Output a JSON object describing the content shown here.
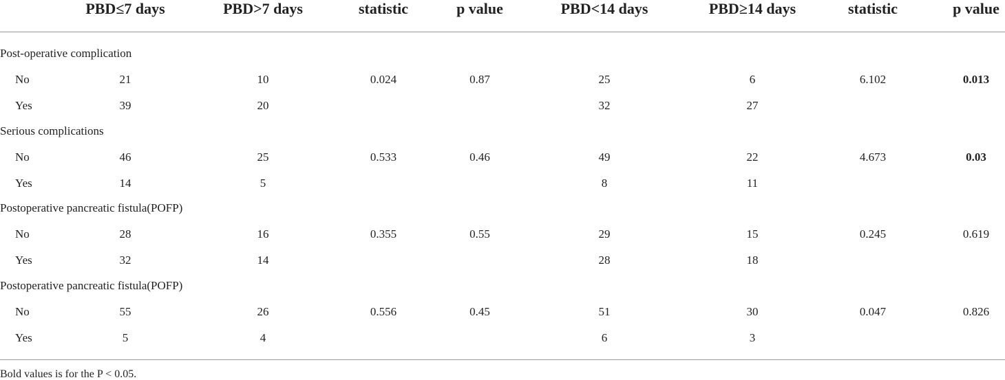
{
  "header": {
    "columns": [
      "PBD≤7 days",
      "PBD>7 days",
      "statistic",
      "p value",
      "PBD<14 days",
      "PBD≥14 days",
      "statistic",
      "p value"
    ]
  },
  "sections": [
    {
      "title": "Post-operative complication",
      "rows": [
        {
          "label": "No",
          "cells": [
            "21",
            "10",
            "0.024",
            "0.87",
            "25",
            "6",
            "6.102",
            "0.013"
          ],
          "bold_columns": [
            7
          ]
        },
        {
          "label": "Yes",
          "cells": [
            "39",
            "20",
            null,
            null,
            "32",
            "27",
            null,
            null
          ]
        }
      ]
    },
    {
      "title": "Serious complications",
      "rows": [
        {
          "label": "No",
          "cells": [
            "46",
            "25",
            "0.533",
            "0.46",
            "49",
            "22",
            "4.673",
            "0.03"
          ],
          "bold_columns": [
            7
          ]
        },
        {
          "label": "Yes",
          "cells": [
            "14",
            "5",
            null,
            null,
            "8",
            "11",
            null,
            null
          ]
        }
      ]
    },
    {
      "title": "Postoperative pancreatic fistula(POFP)",
      "rows": [
        {
          "label": "No",
          "cells": [
            "28",
            "16",
            "0.355",
            "0.55",
            "29",
            "15",
            "0.245",
            "0.619"
          ]
        },
        {
          "label": "Yes",
          "cells": [
            "32",
            "14",
            null,
            null,
            "28",
            "18",
            null,
            null
          ]
        }
      ]
    },
    {
      "title": "Postoperative pancreatic fistula(POFP)",
      "rows": [
        {
          "label": "No",
          "cells": [
            "55",
            "26",
            "0.556",
            "0.45",
            "51",
            "30",
            "0.047",
            "0.826"
          ]
        },
        {
          "label": "Yes",
          "cells": [
            "5",
            "4",
            null,
            null,
            "6",
            "3",
            null,
            null
          ]
        }
      ]
    }
  ],
  "footnote": "Bold values is for the P < 0.05."
}
